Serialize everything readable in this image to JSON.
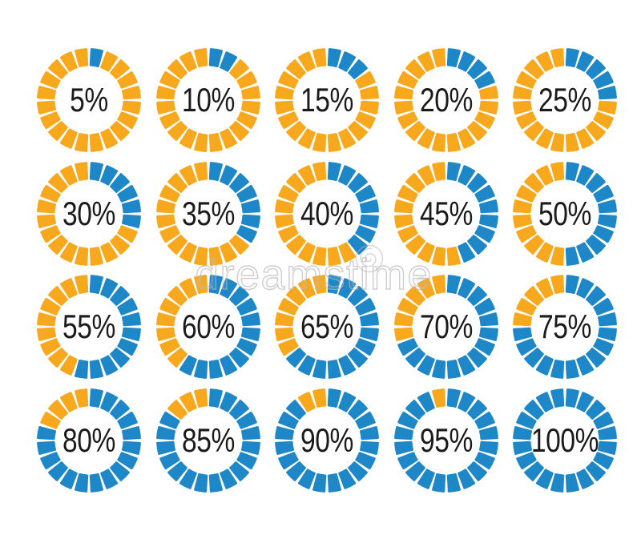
{
  "colors": {
    "filled_blue": "#1E87C8",
    "unfilled_yellow": "#F8A81D",
    "label_text": "#1B1B1B",
    "watermark_gray": "#B4B4B4",
    "background": "#FFFFFF"
  },
  "watermark": {
    "text": "dreamstime",
    "registered_mark": "®",
    "logo_icon": "spiral-logo"
  },
  "chart_data": {
    "type": "pie",
    "variant": "segmented-donut-percentage-indicators",
    "segments_per_circle": 20,
    "segment_unit_percent": 5,
    "fill_direction": "clockwise-from-top",
    "grid": {
      "columns": 5,
      "rows": 4
    },
    "legend": "none",
    "items": [
      {
        "percent": 5,
        "label": "5%"
      },
      {
        "percent": 10,
        "label": "10%"
      },
      {
        "percent": 15,
        "label": "15%"
      },
      {
        "percent": 20,
        "label": "20%"
      },
      {
        "percent": 25,
        "label": "25%"
      },
      {
        "percent": 30,
        "label": "30%"
      },
      {
        "percent": 35,
        "label": "35%"
      },
      {
        "percent": 40,
        "label": "40%"
      },
      {
        "percent": 45,
        "label": "45%"
      },
      {
        "percent": 50,
        "label": "50%"
      },
      {
        "percent": 55,
        "label": "55%"
      },
      {
        "percent": 60,
        "label": "60%"
      },
      {
        "percent": 65,
        "label": "65%"
      },
      {
        "percent": 70,
        "label": "70%"
      },
      {
        "percent": 75,
        "label": "75%"
      },
      {
        "percent": 80,
        "label": "80%"
      },
      {
        "percent": 85,
        "label": "85%"
      },
      {
        "percent": 90,
        "label": "90%"
      },
      {
        "percent": 95,
        "label": "95%"
      },
      {
        "percent": 100,
        "label": "100%"
      }
    ]
  }
}
